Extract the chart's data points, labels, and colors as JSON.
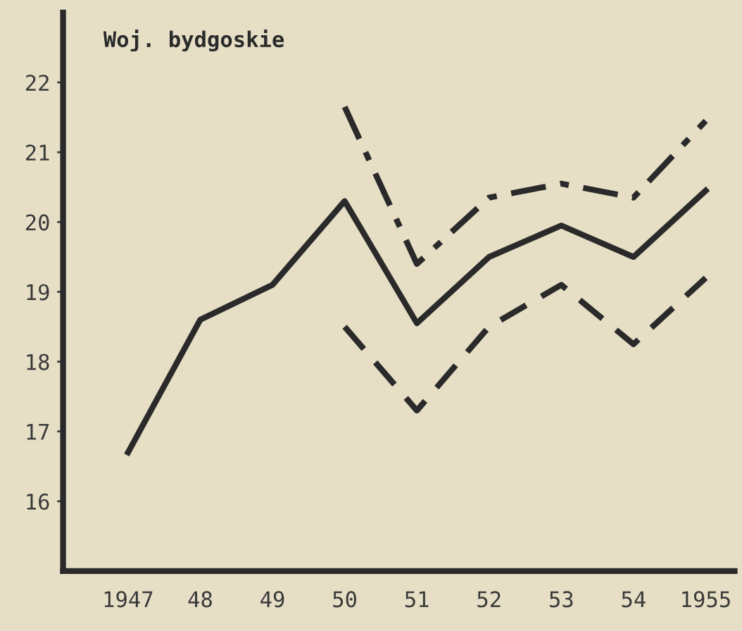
{
  "chart_data": {
    "type": "line",
    "title": "Woj. bydgoskie",
    "categories": [
      "1947",
      "48",
      "49",
      "50",
      "51",
      "52",
      "53",
      "54",
      "1955"
    ],
    "series": [
      {
        "color": "#2a2a2a",
        "line_style": "solid",
        "values": [
          16.7,
          18.6,
          19.1,
          20.3,
          18.55,
          19.5,
          19.95,
          19.5,
          20.45
        ]
      },
      {
        "color": "#2a2a2a",
        "line_style": "dashdot",
        "values": [
          null,
          null,
          null,
          21.65,
          19.4,
          20.35,
          20.55,
          20.35,
          21.45
        ]
      },
      {
        "color": "#2a2a2a",
        "line_style": "dashed",
        "values": [
          null,
          null,
          null,
          18.5,
          17.3,
          18.5,
          19.1,
          18.25,
          19.2
        ]
      }
    ],
    "ylim": [
      15,
      23
    ],
    "yticks": [
      16,
      17,
      18,
      19,
      20,
      21,
      22
    ],
    "grid": false,
    "legend": false,
    "marker": "none"
  }
}
